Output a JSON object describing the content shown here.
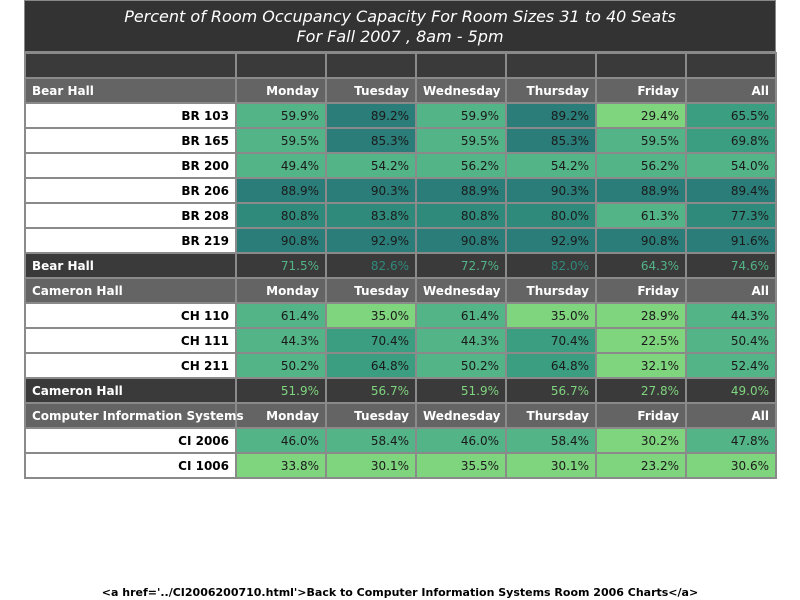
{
  "chart_data": {
    "type": "table",
    "title": "Percent of Room Occupancy Capacity For Room Sizes 31 to 40 Seats",
    "subtitle": "For Fall 2007  , 8am - 5pm",
    "columns": [
      "Monday",
      "Tuesday",
      "Wednesday",
      "Thursday",
      "Friday",
      "All"
    ],
    "sections": [
      {
        "hall": "Bear Hall",
        "rows": [
          {
            "room": "BR 103",
            "values": [
              59.9,
              89.2,
              59.9,
              89.2,
              29.4,
              65.5
            ]
          },
          {
            "room": "BR 165",
            "values": [
              59.5,
              85.3,
              59.5,
              85.3,
              59.5,
              69.8
            ]
          },
          {
            "room": "BR 200",
            "values": [
              49.4,
              54.2,
              56.2,
              54.2,
              56.2,
              54.0
            ]
          },
          {
            "room": "BR 206",
            "values": [
              88.9,
              90.3,
              88.9,
              90.3,
              88.9,
              89.4
            ]
          },
          {
            "room": "BR 208",
            "values": [
              80.8,
              83.8,
              80.8,
              80.0,
              61.3,
              77.3
            ]
          },
          {
            "room": "BR 219",
            "values": [
              90.8,
              92.9,
              90.8,
              92.9,
              90.8,
              91.6
            ]
          }
        ],
        "summary": [
          71.5,
          82.6,
          72.7,
          82.0,
          64.3,
          74.6
        ]
      },
      {
        "hall": "Cameron Hall",
        "rows": [
          {
            "room": "CH 110",
            "values": [
              61.4,
              35.0,
              61.4,
              35.0,
              28.9,
              44.3
            ]
          },
          {
            "room": "CH 111",
            "values": [
              44.3,
              70.4,
              44.3,
              70.4,
              22.5,
              50.4
            ]
          },
          {
            "room": "CH 211",
            "values": [
              50.2,
              64.8,
              50.2,
              64.8,
              32.1,
              52.4
            ]
          }
        ],
        "summary": [
          51.9,
          56.7,
          51.9,
          56.7,
          27.8,
          49.0
        ]
      },
      {
        "hall": "Computer Information Systems",
        "rows": [
          {
            "room": "CI 2006",
            "values": [
              46.0,
              58.4,
              46.0,
              58.4,
              30.2,
              47.8
            ]
          },
          {
            "room": "CI 1006",
            "values": [
              33.8,
              30.1,
              35.5,
              30.1,
              23.2,
              30.6
            ]
          }
        ],
        "summary": null
      }
    ]
  },
  "footer": {
    "link_text": "<a href='../CI2006200710.html'>Back to Computer Information Systems Room 2006 Charts</a>"
  }
}
